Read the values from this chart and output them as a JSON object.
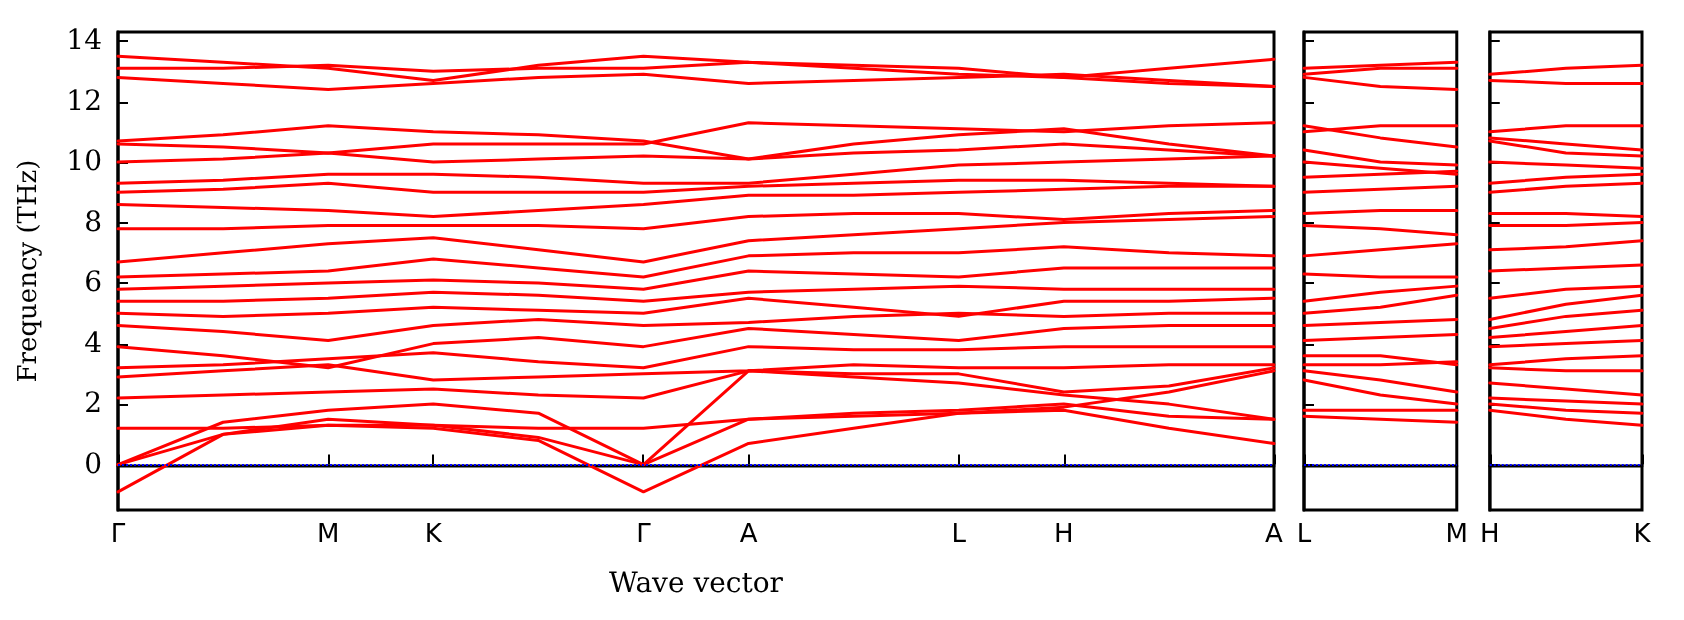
{
  "chart_data": [
    {
      "type": "line",
      "xlabel": "Wave vector",
      "ylabel": "Frequency (THz)",
      "ylim": [
        -1.5,
        14.3
      ],
      "categories": [
        "Γ",
        null,
        "M",
        "K",
        null,
        "Γ",
        "A",
        null,
        "L",
        "H",
        null,
        "A"
      ],
      "yticks": [
        0,
        2,
        4,
        6,
        8,
        10,
        12,
        14
      ],
      "grid": false,
      "marker": "none",
      "line_style": "solid",
      "ref_lines": [
        {
          "axis": "y",
          "value": 0,
          "color": "#0000ff",
          "line_style": "dotted"
        }
      ],
      "series": [
        {
          "color": "#ff0000",
          "values": [
            -0.9,
            1.0,
            1.3,
            1.2,
            0.8,
            -0.9,
            0.7,
            1.2,
            1.7,
            1.8,
            1.2,
            0.7
          ]
        },
        {
          "color": "#ff0000",
          "values": [
            0,
            1.0,
            1.5,
            1.3,
            0.9,
            0,
            1.5,
            1.7,
            1.8,
            2.0,
            1.6,
            1.5
          ]
        },
        {
          "color": "#ff0000",
          "values": [
            0,
            1.4,
            1.8,
            2.0,
            1.7,
            0,
            3.1,
            2.9,
            2.7,
            2.3,
            2.0,
            1.5
          ]
        },
        {
          "color": "#ff0000",
          "values": [
            1.2,
            1.2,
            1.3,
            1.3,
            1.2,
            1.2,
            1.5,
            1.6,
            1.7,
            1.9,
            2.4,
            3.1
          ]
        },
        {
          "color": "#ff0000",
          "values": [
            2.2,
            2.3,
            2.4,
            2.5,
            2.3,
            2.2,
            3.1,
            3.0,
            3.0,
            2.4,
            2.6,
            3.2
          ]
        },
        {
          "color": "#ff0000",
          "values": [
            2.9,
            3.1,
            3.3,
            2.8,
            2.9,
            3.0,
            3.1,
            3.3,
            3.2,
            3.2,
            3.3,
            3.3
          ]
        },
        {
          "color": "#ff0000",
          "values": [
            3.2,
            3.3,
            3.5,
            3.7,
            3.4,
            3.2,
            3.9,
            3.8,
            3.8,
            3.9,
            3.9,
            3.9
          ]
        },
        {
          "color": "#ff0000",
          "values": [
            3.9,
            3.6,
            3.2,
            4.0,
            4.2,
            3.9,
            4.5,
            4.3,
            4.1,
            4.5,
            4.6,
            4.6
          ]
        },
        {
          "color": "#ff0000",
          "values": [
            4.6,
            4.4,
            4.1,
            4.6,
            4.8,
            4.6,
            4.7,
            4.9,
            5.0,
            4.9,
            5.0,
            5.0
          ]
        },
        {
          "color": "#ff0000",
          "values": [
            5.0,
            4.9,
            5.0,
            5.2,
            5.1,
            5.0,
            5.5,
            5.2,
            4.9,
            5.4,
            5.4,
            5.5
          ]
        },
        {
          "color": "#ff0000",
          "values": [
            5.4,
            5.4,
            5.5,
            5.7,
            5.6,
            5.4,
            5.7,
            5.8,
            5.9,
            5.8,
            5.8,
            5.8
          ]
        },
        {
          "color": "#ff0000",
          "values": [
            5.8,
            5.9,
            6.0,
            6.1,
            6.0,
            5.8,
            6.4,
            6.3,
            6.2,
            6.5,
            6.5,
            6.5
          ]
        },
        {
          "color": "#ff0000",
          "values": [
            6.2,
            6.3,
            6.4,
            6.8,
            6.5,
            6.2,
            6.9,
            7.0,
            7.0,
            7.2,
            7.0,
            6.9
          ]
        },
        {
          "color": "#ff0000",
          "values": [
            6.7,
            7.0,
            7.3,
            7.5,
            7.1,
            6.7,
            7.4,
            7.6,
            7.8,
            8.0,
            8.1,
            8.2
          ]
        },
        {
          "color": "#ff0000",
          "values": [
            7.8,
            7.8,
            7.9,
            7.9,
            7.9,
            7.8,
            8.2,
            8.3,
            8.3,
            8.1,
            8.3,
            8.4
          ]
        },
        {
          "color": "#ff0000",
          "values": [
            8.6,
            8.5,
            8.4,
            8.2,
            8.4,
            8.6,
            8.9,
            8.9,
            9.0,
            9.1,
            9.2,
            9.2
          ]
        },
        {
          "color": "#ff0000",
          "values": [
            9.0,
            9.1,
            9.3,
            9.0,
            9.0,
            9.0,
            9.2,
            9.3,
            9.4,
            9.4,
            9.3,
            9.2
          ]
        },
        {
          "color": "#ff0000",
          "values": [
            9.3,
            9.4,
            9.6,
            9.6,
            9.5,
            9.3,
            9.3,
            9.6,
            9.9,
            10.0,
            10.1,
            10.2
          ]
        },
        {
          "color": "#ff0000",
          "values": [
            10.0,
            10.1,
            10.3,
            10.0,
            10.1,
            10.2,
            10.1,
            10.3,
            10.4,
            10.6,
            10.4,
            10.2
          ]
        },
        {
          "color": "#ff0000",
          "values": [
            10.6,
            10.5,
            10.3,
            10.6,
            10.6,
            10.6,
            11.3,
            11.2,
            11.1,
            11.0,
            11.2,
            11.3
          ]
        },
        {
          "color": "#ff0000",
          "values": [
            10.7,
            10.9,
            11.2,
            11.0,
            10.9,
            10.7,
            10.1,
            10.6,
            10.9,
            11.1,
            10.6,
            10.2
          ]
        },
        {
          "color": "#ff0000",
          "values": [
            12.8,
            12.6,
            12.4,
            12.6,
            12.8,
            12.9,
            12.6,
            12.7,
            12.8,
            12.9,
            12.7,
            12.5
          ]
        },
        {
          "color": "#ff0000",
          "values": [
            13.1,
            13.1,
            13.2,
            13.0,
            13.1,
            13.1,
            13.3,
            13.1,
            12.9,
            12.8,
            12.6,
            12.5
          ]
        },
        {
          "color": "#ff0000",
          "values": [
            13.5,
            13.3,
            13.1,
            12.7,
            13.2,
            13.5,
            13.3,
            13.2,
            13.1,
            12.8,
            13.1,
            13.4
          ]
        }
      ]
    },
    {
      "type": "line",
      "ylim": [
        -1.5,
        14.3
      ],
      "categories": [
        "L",
        null,
        "M"
      ],
      "yticks": [
        0,
        2,
        4,
        6,
        8,
        10,
        12,
        14
      ],
      "tick_labels": "x",
      "grid": false,
      "marker": "none",
      "line_style": "solid",
      "ref_lines": [
        {
          "axis": "y",
          "value": 0,
          "color": "#0000ff",
          "line_style": "dotted"
        }
      ],
      "series": [
        {
          "color": "#ff0000",
          "values": [
            1.6,
            1.5,
            1.4
          ]
        },
        {
          "color": "#ff0000",
          "values": [
            1.8,
            1.8,
            1.8
          ]
        },
        {
          "color": "#ff0000",
          "values": [
            2.8,
            2.3,
            2.0
          ]
        },
        {
          "color": "#ff0000",
          "values": [
            3.1,
            2.8,
            2.4
          ]
        },
        {
          "color": "#ff0000",
          "values": [
            3.3,
            3.3,
            3.4
          ]
        },
        {
          "color": "#ff0000",
          "values": [
            3.6,
            3.6,
            3.3
          ]
        },
        {
          "color": "#ff0000",
          "values": [
            4.1,
            4.2,
            4.3
          ]
        },
        {
          "color": "#ff0000",
          "values": [
            4.6,
            4.7,
            4.8
          ]
        },
        {
          "color": "#ff0000",
          "values": [
            5.0,
            5.2,
            5.6
          ]
        },
        {
          "color": "#ff0000",
          "values": [
            5.4,
            5.7,
            5.9
          ]
        },
        {
          "color": "#ff0000",
          "values": [
            6.3,
            6.2,
            6.2
          ]
        },
        {
          "color": "#ff0000",
          "values": [
            6.9,
            7.1,
            7.3
          ]
        },
        {
          "color": "#ff0000",
          "values": [
            7.9,
            7.8,
            7.6
          ]
        },
        {
          "color": "#ff0000",
          "values": [
            8.3,
            8.4,
            8.4
          ]
        },
        {
          "color": "#ff0000",
          "values": [
            9.0,
            9.1,
            9.2
          ]
        },
        {
          "color": "#ff0000",
          "values": [
            9.5,
            9.6,
            9.7
          ]
        },
        {
          "color": "#ff0000",
          "values": [
            10.0,
            9.8,
            9.6
          ]
        },
        {
          "color": "#ff0000",
          "values": [
            10.4,
            10.0,
            9.9
          ]
        },
        {
          "color": "#ff0000",
          "values": [
            11.0,
            11.2,
            11.2
          ]
        },
        {
          "color": "#ff0000",
          "values": [
            11.2,
            10.8,
            10.5
          ]
        },
        {
          "color": "#ff0000",
          "values": [
            12.8,
            12.5,
            12.4
          ]
        },
        {
          "color": "#ff0000",
          "values": [
            12.9,
            13.1,
            13.1
          ]
        },
        {
          "color": "#ff0000",
          "values": [
            13.1,
            13.2,
            13.3
          ]
        }
      ]
    },
    {
      "type": "line",
      "ylim": [
        -1.5,
        14.3
      ],
      "categories": [
        "H",
        null,
        "K"
      ],
      "yticks": [
        0,
        2,
        4,
        6,
        8,
        10,
        12,
        14
      ],
      "tick_labels": "x",
      "grid": false,
      "marker": "none",
      "line_style": "solid",
      "ref_lines": [
        {
          "axis": "y",
          "value": 0,
          "color": "#0000ff",
          "line_style": "dotted"
        }
      ],
      "series": [
        {
          "color": "#ff0000",
          "values": [
            1.8,
            1.5,
            1.3
          ]
        },
        {
          "color": "#ff0000",
          "values": [
            2.0,
            1.8,
            1.7
          ]
        },
        {
          "color": "#ff0000",
          "values": [
            2.2,
            2.1,
            2.0
          ]
        },
        {
          "color": "#ff0000",
          "values": [
            2.7,
            2.5,
            2.3
          ]
        },
        {
          "color": "#ff0000",
          "values": [
            3.2,
            3.1,
            3.1
          ]
        },
        {
          "color": "#ff0000",
          "values": [
            3.3,
            3.5,
            3.6
          ]
        },
        {
          "color": "#ff0000",
          "values": [
            3.9,
            4.0,
            4.1
          ]
        },
        {
          "color": "#ff0000",
          "values": [
            4.2,
            4.4,
            4.6
          ]
        },
        {
          "color": "#ff0000",
          "values": [
            4.5,
            4.9,
            5.1
          ]
        },
        {
          "color": "#ff0000",
          "values": [
            4.8,
            5.3,
            5.6
          ]
        },
        {
          "color": "#ff0000",
          "values": [
            5.5,
            5.8,
            5.9
          ]
        },
        {
          "color": "#ff0000",
          "values": [
            6.4,
            6.5,
            6.6
          ]
        },
        {
          "color": "#ff0000",
          "values": [
            7.1,
            7.2,
            7.4
          ]
        },
        {
          "color": "#ff0000",
          "values": [
            7.9,
            7.9,
            8.0
          ]
        },
        {
          "color": "#ff0000",
          "values": [
            8.3,
            8.3,
            8.2
          ]
        },
        {
          "color": "#ff0000",
          "values": [
            9.0,
            9.2,
            9.3
          ]
        },
        {
          "color": "#ff0000",
          "values": [
            9.3,
            9.5,
            9.6
          ]
        },
        {
          "color": "#ff0000",
          "values": [
            10.0,
            9.9,
            9.8
          ]
        },
        {
          "color": "#ff0000",
          "values": [
            10.7,
            10.3,
            10.2
          ]
        },
        {
          "color": "#ff0000",
          "values": [
            11.0,
            11.2,
            11.2
          ]
        },
        {
          "color": "#ff0000",
          "values": [
            10.8,
            10.6,
            10.4
          ]
        },
        {
          "color": "#ff0000",
          "values": [
            12.7,
            12.6,
            12.6
          ]
        },
        {
          "color": "#ff0000",
          "values": [
            12.9,
            13.1,
            13.2
          ]
        }
      ]
    }
  ]
}
